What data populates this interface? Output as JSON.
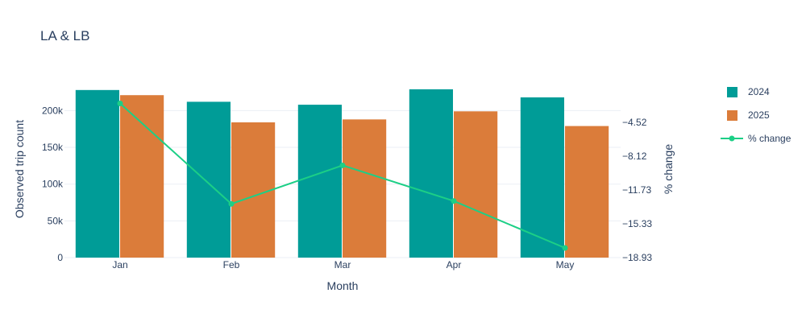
{
  "chart_data": {
    "type": "bar",
    "title": "LA & LB",
    "xlabel": "Month",
    "ylabel": "Observed trip count",
    "y2label": "% change",
    "categories": [
      "Jan",
      "Feb",
      "Mar",
      "Apr",
      "May"
    ],
    "series": [
      {
        "name": "2024",
        "type": "bar",
        "axis": "y",
        "color": "#009c97",
        "values": [
          228000,
          212000,
          208000,
          229000,
          218000
        ]
      },
      {
        "name": "2025",
        "type": "bar",
        "axis": "y",
        "color": "#db7c3a",
        "values": [
          221000,
          184000,
          188000,
          199000,
          179000
        ]
      },
      {
        "name": "% change",
        "type": "line",
        "axis": "y2",
        "color": "#1ccf86",
        "values": [
          -2.5,
          -13.2,
          -9.1,
          -12.9,
          -17.9
        ]
      }
    ],
    "ylim": [
      0,
      230000
    ],
    "yticks": [
      0,
      50000,
      100000,
      150000,
      200000
    ],
    "ytick_labels": [
      "0",
      "50k",
      "100k",
      "150k",
      "200k"
    ],
    "y2lim": [
      -18.93,
      -0.91
    ],
    "y2ticks": [
      -18.93,
      -15.33,
      -11.73,
      -8.12,
      -4.52
    ],
    "y2tick_labels": [
      "−18.93",
      "−15.33",
      "−11.73",
      "−8.12",
      "−4.52"
    ],
    "grid": true,
    "legend": "right"
  }
}
